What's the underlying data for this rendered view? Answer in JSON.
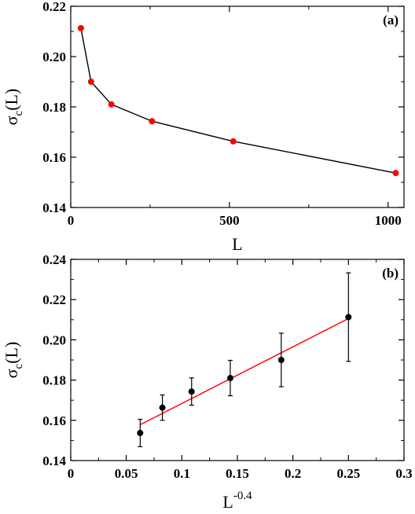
{
  "chart_data": [
    {
      "type": "line",
      "panel_label": "(a)",
      "xlabel": "L",
      "ylabel": "σc(L)",
      "xlim": [
        0,
        1050
      ],
      "ylim": [
        0.14,
        0.22
      ],
      "xticks": [
        0,
        500,
        1000
      ],
      "yticks": [
        0.14,
        0.16,
        0.18,
        0.2,
        0.22
      ],
      "ytick_labels": [
        "0.14",
        "0.16",
        "0.18",
        "0.20",
        "0.22"
      ],
      "legend": "none",
      "grid": false,
      "series": [
        {
          "x": [
            32,
            64,
            128,
            256,
            512,
            1024
          ],
          "y": [
            0.2113,
            0.19,
            0.181,
            0.1743,
            0.1663,
            0.1537
          ],
          "line_color": "#000000",
          "marker_color": "#ff0000"
        }
      ]
    },
    {
      "type": "scatter",
      "panel_label": "(b)",
      "xlabel": "L",
      "xlabel_superscript": "-0.4",
      "ylabel": "σc(L)",
      "xlim": [
        0,
        0.3
      ],
      "ylim": [
        0.14,
        0.24
      ],
      "xticks": [
        0,
        0.05,
        0.1,
        0.15,
        0.2,
        0.25,
        0.3
      ],
      "xtick_labels": [
        "0",
        "0.05",
        "0.1",
        "0.15",
        "0.2",
        "0.25",
        "0.3"
      ],
      "yticks": [
        0.14,
        0.16,
        0.18,
        0.2,
        0.22,
        0.24
      ],
      "ytick_labels": [
        "0.14",
        "0.16",
        "0.18",
        "0.20",
        "0.22",
        "0.24"
      ],
      "legend": "none",
      "grid": false,
      "series": [
        {
          "x": [
            0.0625,
            0.0825,
            0.1088,
            0.1436,
            0.1895,
            0.25
          ],
          "y": [
            0.1537,
            0.1663,
            0.1743,
            0.181,
            0.19,
            0.2113
          ],
          "yerr": [
            0.0068,
            0.0063,
            0.0068,
            0.0088,
            0.0133,
            0.022
          ],
          "marker_color": "#000000"
        }
      ],
      "fit_line": {
        "x": [
          0.0625,
          0.25
        ],
        "y": [
          0.1578,
          0.2106
        ],
        "color": "#ff0000"
      }
    }
  ]
}
